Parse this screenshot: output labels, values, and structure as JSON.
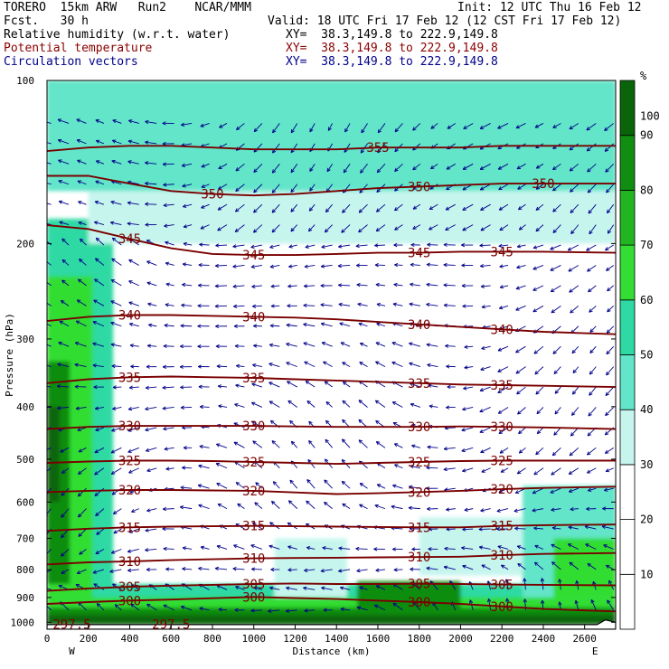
{
  "header": {
    "model": "TORERO  15km ARW   Run2    NCAR/MMM",
    "init": "Init: 12 UTC Thu 16 Feb 12",
    "fcst": "Fcst.   30 h",
    "valid": "Valid: 18 UTC Fri 17 Feb 12 (12 CST Fri 17 Feb 12)",
    "fields": [
      {
        "label": "Relative humidity (w.r.t. water)",
        "xy": "XY=  38.3,149.8 to 222.9,149.8",
        "color": "#000000"
      },
      {
        "label": "Potential temperature",
        "xy": "XY=  38.3,149.8 to 222.9,149.8",
        "color": "#8b0000"
      },
      {
        "label": "Circulation vectors",
        "xy": "XY=  38.3,149.8 to 222.9,149.8",
        "color": "#00008b"
      }
    ]
  },
  "chart_data": {
    "type": "cross-section",
    "xlabel": "Distance (km)",
    "ylabel": "Pressure (hPa)",
    "x_ticks": [
      0,
      200,
      400,
      600,
      800,
      1000,
      1200,
      1400,
      1600,
      1800,
      2000,
      2200,
      2400,
      2600
    ],
    "y_ticks": [
      100,
      200,
      300,
      400,
      500,
      600,
      700,
      800,
      900,
      1000
    ],
    "xlim": [
      0,
      2750
    ],
    "ylim": [
      1030,
      100
    ],
    "y_scale": "log",
    "west_label": "W",
    "east_label": "E",
    "rh_colorbar": {
      "unit": "%",
      "levels": [
        10,
        20,
        30,
        40,
        50,
        60,
        70,
        80,
        90,
        100
      ],
      "colors": [
        "#ffffff",
        "#ffffff",
        "#ffffff",
        "#c6f5ee",
        "#62e5c8",
        "#2ed9a3",
        "#33dd33",
        "#22b522",
        "#118d11",
        "#0a650a"
      ]
    },
    "theta_contours": [
      {
        "value": 300,
        "p": [
          925,
          918,
          912,
          908,
          903,
          898,
          902,
          906,
          912,
          918,
          925,
          935,
          945,
          955
        ],
        "labels": [
          "300",
          "300",
          "300",
          "300"
        ]
      },
      {
        "value": 305,
        "p": [
          875,
          866,
          860,
          856,
          853,
          850,
          848,
          850,
          850,
          849,
          850,
          852,
          853,
          855
        ],
        "labels": [
          "305",
          "305",
          "305",
          "305"
        ]
      },
      {
        "value": 310,
        "p": [
          782,
          775,
          772,
          768,
          765,
          762,
          761,
          760,
          759,
          758,
          757,
          752,
          748,
          745
        ],
        "labels": [
          "310",
          "310",
          "310",
          "310"
        ]
      },
      {
        "value": 315,
        "p": [
          678,
          672,
          668,
          666,
          665,
          664,
          665,
          666,
          667,
          668,
          668,
          664,
          662,
          660
        ],
        "labels": [
          "315",
          "315",
          "315",
          "315"
        ]
      },
      {
        "value": 320,
        "p": [
          575,
          572,
          570,
          570,
          571,
          572,
          576,
          580,
          578,
          575,
          572,
          568,
          565,
          562
        ],
        "labels": [
          "320",
          "320",
          "320",
          "320"
        ]
      },
      {
        "value": 325,
        "p": [
          508,
          505,
          503,
          503,
          504,
          506,
          508,
          510,
          508,
          506,
          504,
          503,
          503,
          503
        ],
        "labels": [
          "325",
          "325",
          "325",
          "325"
        ]
      },
      {
        "value": 330,
        "p": [
          440,
          436,
          434,
          434,
          434,
          434,
          435,
          436,
          436,
          436,
          435,
          436,
          437,
          440
        ],
        "labels": [
          "330",
          "330",
          "330",
          "330"
        ]
      },
      {
        "value": 335,
        "p": [
          362,
          356,
          353,
          352,
          353,
          354,
          356,
          358,
          360,
          362,
          364,
          365,
          366,
          368
        ],
        "labels": [
          "335",
          "335",
          "335",
          "335"
        ]
      },
      {
        "value": 340,
        "p": [
          278,
          273,
          271,
          271,
          272,
          273,
          274,
          276,
          279,
          282,
          285,
          288,
          291,
          294
        ],
        "labels": [
          "340",
          "340",
          "340",
          "340"
        ]
      },
      {
        "value": 345,
        "p": [
          185,
          188,
          196,
          204,
          209,
          210,
          210,
          209,
          208,
          208,
          207,
          207,
          207,
          208
        ],
        "labels": [
          "345",
          "345",
          "345",
          "345"
        ]
      },
      {
        "value": 350,
        "p": [
          150,
          150,
          155,
          160,
          162,
          163,
          162,
          160,
          158,
          157,
          156,
          155,
          155,
          155
        ],
        "labels": [
          "350",
          "350",
          "350"
        ]
      },
      {
        "value": 355,
        "p": [
          135,
          133,
          132,
          132,
          133,
          134,
          134,
          134,
          133,
          133,
          133,
          132,
          132,
          132
        ],
        "labels": [
          "355"
        ]
      }
    ],
    "theta_x": [
      0,
      200,
      400,
      600,
      800,
      1000,
      1200,
      1400,
      1600,
      1800,
      2000,
      2200,
      2400,
      2750
    ],
    "surface_labels": [
      "297.5",
      "297.5"
    ],
    "colors": {
      "theta": "#7a0000",
      "vectors": "#00008b",
      "axis": "#000000"
    }
  }
}
